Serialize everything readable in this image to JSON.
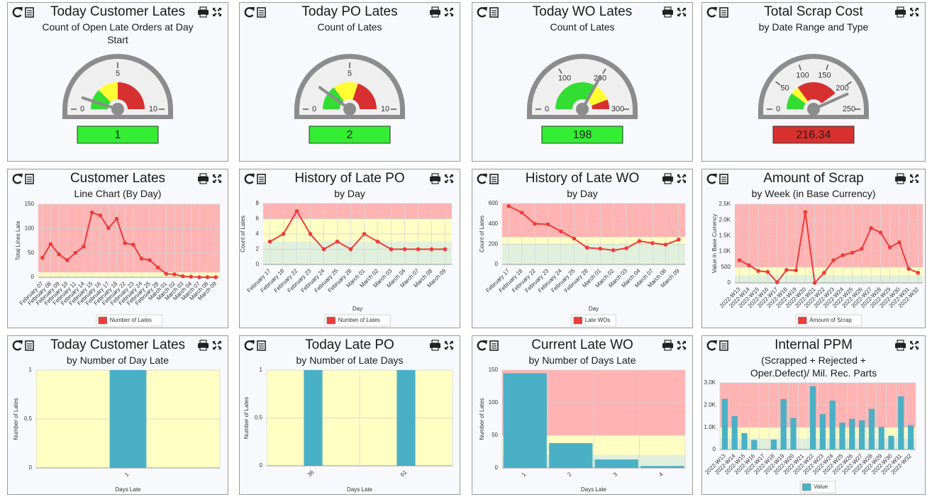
{
  "chart_data": [
    {
      "type": "gauge",
      "title": "Today Customer Lates",
      "subtitle": "Count of Open Late Orders at Day Start",
      "value": 1,
      "ylim": [
        0,
        10
      ],
      "yticks": [
        0,
        5,
        10
      ],
      "bands": [
        {
          "from": 0,
          "to": 2.5,
          "color": "#33dd33"
        },
        {
          "from": 2.5,
          "to": 5,
          "color": "#ffff33"
        },
        {
          "from": 5,
          "to": 10,
          "color": "#d63030"
        }
      ],
      "box_color": "#33ee33"
    },
    {
      "type": "gauge",
      "title": "Today PO Lates",
      "subtitle": "Count of Lates",
      "value": 2,
      "ylim": [
        0,
        10
      ],
      "yticks": [
        0,
        5,
        10
      ],
      "bands": [
        {
          "from": 0,
          "to": 3,
          "color": "#33dd33"
        },
        {
          "from": 3,
          "to": 6,
          "color": "#ffff33"
        },
        {
          "from": 6,
          "to": 10,
          "color": "#d63030"
        }
      ],
      "box_color": "#33ee33"
    },
    {
      "type": "gauge",
      "title": "Today WO Lates",
      "subtitle": "Count of Lates",
      "value": 198,
      "ylim": [
        0,
        300
      ],
      "yticks": [
        0,
        100,
        200,
        300
      ],
      "bands": [
        {
          "from": 0,
          "to": 200,
          "color": "#33dd33"
        },
        {
          "from": 200,
          "to": 265,
          "color": "#ffff33"
        },
        {
          "from": 265,
          "to": 300,
          "color": "#d63030"
        }
      ],
      "box_color": "#33ee33"
    },
    {
      "type": "gauge",
      "title": "Total Scrap Cost",
      "subtitle": "by Date Range and Type",
      "value": 216.34,
      "ylim": [
        0,
        250
      ],
      "yticks": [
        0,
        50,
        100,
        150,
        200,
        250
      ],
      "bands": [
        {
          "from": 0,
          "to": 50,
          "color": "#33dd33"
        },
        {
          "from": 50,
          "to": 75,
          "color": "#ffff33"
        },
        {
          "from": 75,
          "to": 200,
          "color": "#d63030"
        }
      ],
      "box_color": "#d93030"
    },
    {
      "type": "line",
      "title": "Customer Lates",
      "subtitle": "Line Chart (By Day)",
      "ylabel": "Total Lines Late",
      "categories": [
        "February 07",
        "February 08",
        "February 09",
        "February 10",
        "February 11",
        "February 14",
        "February 15",
        "February 16",
        "February 17",
        "February 18",
        "February 22",
        "February 23",
        "February 24",
        "February 25",
        "February 28",
        "March 01",
        "March 02",
        "March 03",
        "March 04",
        "March 07",
        "March 08",
        "March 09"
      ],
      "series": [
        {
          "name": "Number of Lates",
          "color": "#ee3b3b",
          "values": [
            40,
            68,
            47,
            35,
            50,
            63,
            133,
            127,
            101,
            120,
            70,
            67,
            38,
            35,
            20,
            7,
            6,
            2,
            1,
            0,
            0,
            0
          ]
        }
      ],
      "ylim": [
        0,
        150
      ],
      "yticks": [
        0,
        50,
        100,
        150
      ],
      "bands": [
        {
          "from": 0,
          "to": 10,
          "color": "#ffffc4"
        },
        {
          "from": 10,
          "to": 150,
          "color": "#ffb3b3"
        }
      ]
    },
    {
      "type": "line",
      "title": "History of Late PO",
      "subtitle": "by Day",
      "ylabel": "Count of Lates",
      "xlabel": "Day",
      "categories": [
        "February 17",
        "February 18",
        "February 22",
        "February 23",
        "February 24",
        "February 25",
        "February 28",
        "March 01",
        "March 02",
        "March 03",
        "March 04",
        "March 07",
        "March 08",
        "March 09"
      ],
      "series": [
        {
          "name": "Number of Lates",
          "color": "#ee3b3b",
          "values": [
            3,
            4,
            7,
            4,
            2,
            3,
            2,
            4,
            3,
            2,
            2,
            2,
            2,
            2
          ]
        }
      ],
      "ylim": [
        0,
        8
      ],
      "yticks": [
        0,
        2,
        4,
        6,
        8
      ],
      "bands": [
        {
          "from": 0,
          "to": 3,
          "color": "#e0f0dc"
        },
        {
          "from": 3,
          "to": 6,
          "color": "#ffffc4"
        },
        {
          "from": 6,
          "to": 8,
          "color": "#ffb3b3"
        }
      ]
    },
    {
      "type": "line",
      "title": "History of Late WO",
      "subtitle": "by Day",
      "ylabel": "Count of Lates",
      "xlabel": "Day",
      "categories": [
        "February 17",
        "February 18",
        "February 22",
        "February 23",
        "February 24",
        "February 25",
        "February 28",
        "March 01",
        "March 02",
        "March 03",
        "March 04",
        "March 07",
        "March 08",
        "March 09"
      ],
      "series": [
        {
          "name": "Late WOs",
          "color": "#ee3b3b",
          "values": [
            575,
            510,
            400,
            395,
            325,
            255,
            165,
            155,
            140,
            160,
            230,
            210,
            195,
            245
          ]
        }
      ],
      "ylim": [
        0,
        600
      ],
      "yticks": [
        0,
        200,
        400,
        600
      ],
      "bands": [
        {
          "from": 0,
          "to": 200,
          "color": "#e0f0dc"
        },
        {
          "from": 200,
          "to": 270,
          "color": "#ffffc4"
        },
        {
          "from": 270,
          "to": 600,
          "color": "#ffb3b3"
        }
      ]
    },
    {
      "type": "line",
      "title": "Amount of Scrap",
      "subtitle": "by Week (in Base Currency)",
      "ylabel": "Value in Base Currency",
      "categories": [
        "2022-W13",
        "2022-W14",
        "2022-W15",
        "2022-W16",
        "2022-W17",
        "2022-W18",
        "2022-W19",
        "2022-W20",
        "2022-W21",
        "2022-W22",
        "2022-W23",
        "2022-W24",
        "2022-W25",
        "2022-W26",
        "2022-W27",
        "2022-W28",
        "2022-W29",
        "2022-W30",
        "2022-W31",
        "2022-W32"
      ],
      "series": [
        {
          "name": "Amount of Scrap",
          "color": "#ee3b3b",
          "values": [
            720,
            560,
            380,
            350,
            20,
            410,
            400,
            2250,
            0,
            320,
            720,
            880,
            960,
            1080,
            1740,
            1600,
            1130,
            1290,
            450,
            320
          ]
        }
      ],
      "ylim": [
        0,
        2500
      ],
      "yticks": [
        0,
        500,
        {
          "value": 1000,
          "label": "1.0K"
        },
        {
          "value": 1500,
          "label": "1.5K"
        },
        {
          "value": 2000,
          "label": "2.0K"
        },
        {
          "value": 2500,
          "label": "2.5K"
        }
      ],
      "bands": [
        {
          "from": 0,
          "to": 250,
          "color": "#e0f0dc"
        },
        {
          "from": 250,
          "to": 500,
          "color": "#ffffc4"
        },
        {
          "from": 500,
          "to": 2500,
          "color": "#ffb3b3"
        }
      ]
    },
    {
      "type": "bar",
      "title": "Today Customer Lates",
      "subtitle": "by Number of Day Late",
      "ylabel": "Number of Lates",
      "xlabel": "Days Late",
      "categories": [
        "1"
      ],
      "values": [
        1
      ],
      "color": "#4ab0c6",
      "ylim": [
        0,
        1
      ],
      "yticks": [
        0,
        0.5,
        1
      ],
      "bands": [
        {
          "from": 0,
          "to": 1,
          "color": "#ffffc4"
        }
      ]
    },
    {
      "type": "bar",
      "title": "Today Late PO",
      "subtitle": "by Number of Late Days",
      "ylabel": "Number of Lates",
      "xlabel": "Days Late",
      "categories": [
        "36",
        "61"
      ],
      "values": [
        1,
        1
      ],
      "color": "#4ab0c6",
      "ylim": [
        0,
        1
      ],
      "yticks": [
        0,
        0.5,
        1
      ],
      "bands": [
        {
          "from": 0,
          "to": 1,
          "color": "#ffffc4"
        }
      ]
    },
    {
      "type": "bar",
      "title": "Current Late WO",
      "subtitle": "by Number of Days Late",
      "ylabel": "Number of Lates",
      "xlabel": "Days Late",
      "categories": [
        "1",
        "2",
        "3",
        "4"
      ],
      "values": [
        145,
        38,
        13,
        3
      ],
      "color": "#4ab0c6",
      "ylim": [
        0,
        150
      ],
      "yticks": [
        0,
        50,
        100,
        150
      ],
      "bands": [
        {
          "from": 0,
          "to": 20,
          "color": "#e0f0dc"
        },
        {
          "from": 20,
          "to": 50,
          "color": "#ffffc4"
        },
        {
          "from": 50,
          "to": 150,
          "color": "#ffb3b3"
        }
      ]
    },
    {
      "type": "bar",
      "title": "Internal PPM",
      "subtitle": "(Scrapped + Rejected + Oper.Defect)/ Mil. Rec. Parts",
      "categories": [
        "2022-W13",
        "2022-W14",
        "2022-W15",
        "2022-W16",
        "2022-W17",
        "2022-W18",
        "2022-W19",
        "2022-W20",
        "2022-W21",
        "2022-W22",
        "2022-W23",
        "2022-W24",
        "2022-W25",
        "2022-W26",
        "2022-W27",
        "2022-W28",
        "2022-W29",
        "2022-W30",
        "2022-W31",
        "2022-W32"
      ],
      "series": [
        {
          "name": "Value",
          "color": "#4ab0c6",
          "values": [
            2280,
            1500,
            740,
            430,
            0,
            450,
            2270,
            1420,
            0,
            2850,
            1590,
            2200,
            1210,
            1380,
            1310,
            1830,
            1020,
            620,
            2390,
            1100
          ]
        }
      ],
      "ylim": [
        0,
        3000
      ],
      "yticks": [
        0,
        {
          "value": 1000,
          "label": "1.0K"
        },
        {
          "value": 2000,
          "label": "2.0K"
        },
        {
          "value": 3000,
          "label": "3.0K"
        }
      ],
      "bands": [
        {
          "from": 0,
          "to": 500,
          "color": "#e0f0dc"
        },
        {
          "from": 500,
          "to": 1000,
          "color": "#ffffc4"
        },
        {
          "from": 1000,
          "to": 3000,
          "color": "#ffb3b3"
        }
      ]
    }
  ]
}
